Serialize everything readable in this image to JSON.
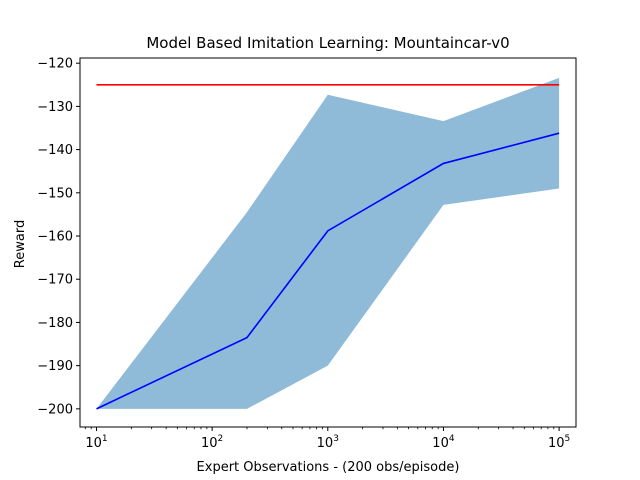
{
  "chart_data": {
    "type": "line",
    "title": "Model Based Imitation Learning: Mountaincar-v0",
    "xlabel": "Expert Observations - (200 obs/episode)",
    "ylabel": "Reward",
    "xscale": "log",
    "xlim": [
      7.2,
      140000
    ],
    "ylim": [
      -204.2,
      -118.8
    ],
    "grid": false,
    "x_ticks": [
      {
        "value": 10,
        "base": "10",
        "exp": "1"
      },
      {
        "value": 100,
        "base": "10",
        "exp": "2"
      },
      {
        "value": 1000,
        "base": "10",
        "exp": "3"
      },
      {
        "value": 10000,
        "base": "10",
        "exp": "4"
      },
      {
        "value": 100000,
        "base": "10",
        "exp": "5"
      }
    ],
    "y_ticks": [
      {
        "value": -120,
        "label": "−120"
      },
      {
        "value": -130,
        "label": "−130"
      },
      {
        "value": -140,
        "label": "−140"
      },
      {
        "value": -150,
        "label": "−150"
      },
      {
        "value": -160,
        "label": "−160"
      },
      {
        "value": -170,
        "label": "−170"
      },
      {
        "value": -180,
        "label": "−180"
      },
      {
        "value": -190,
        "label": "−190"
      },
      {
        "value": -200,
        "label": "−200"
      }
    ],
    "series": [
      {
        "kind": "line",
        "color": "#0000ff",
        "x": [
          10,
          200,
          1000,
          10000,
          100000
        ],
        "y": [
          -200,
          -183.5,
          -158.8,
          -143.2,
          -136.2
        ]
      },
      {
        "kind": "band",
        "color": "#1f77b4",
        "opacity": 0.5,
        "x": [
          10,
          200,
          1000,
          10000,
          100000
        ],
        "upper": [
          -200,
          -154.5,
          -127.3,
          -133.4,
          -123.4
        ],
        "lower": [
          -200,
          -200,
          -190,
          -152.8,
          -149
        ]
      },
      {
        "kind": "line",
        "color": "#ff0000",
        "x": [
          10,
          100000
        ],
        "y": [
          -125,
          -125
        ]
      }
    ]
  }
}
